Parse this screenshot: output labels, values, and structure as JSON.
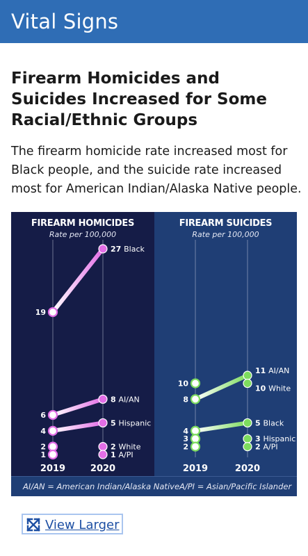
{
  "header": {
    "title": "Vital Signs"
  },
  "article": {
    "headline": "Firearm Homicides and Suicides Increased for Some Racial/Ethnic Groups",
    "lede": "The firearm homicide rate increased most for Black people, and the suicide rate increased most for American Indian/Alaska Native people."
  },
  "colors": {
    "homicide": "#e26ee6",
    "suicide": "#7ddc5e",
    "left_bg": "#151c47",
    "right_bg": "#1f3e75",
    "header": "#2f6db5"
  },
  "chart_data": [
    {
      "type": "line",
      "title": "FIREARM HOMICIDES",
      "subtitle": "Rate per 100,000",
      "x": [
        "2019",
        "2020"
      ],
      "series": [
        {
          "name": "Black",
          "values": [
            19,
            27
          ]
        },
        {
          "name": "AI/AN",
          "values": [
            6,
            8
          ]
        },
        {
          "name": "Hispanic",
          "values": [
            4,
            5
          ]
        },
        {
          "name": "White",
          "values": [
            2,
            2
          ]
        },
        {
          "name": "A/PI",
          "values": [
            1,
            1
          ]
        }
      ]
    },
    {
      "type": "line",
      "title": "FIREARM SUICIDES",
      "subtitle": "Rate per 100,000",
      "x": [
        "2019",
        "2020"
      ],
      "series": [
        {
          "name": "AI/AN",
          "values": [
            8,
            11
          ]
        },
        {
          "name": "White",
          "values": [
            10,
            10
          ]
        },
        {
          "name": "Black",
          "values": [
            4,
            5
          ]
        },
        {
          "name": "Hispanic",
          "values": [
            3,
            3
          ]
        },
        {
          "name": "A/PI",
          "values": [
            2,
            2
          ]
        }
      ]
    }
  ],
  "footnotes": {
    "left": "AI/AN = American Indian/Alaska Native",
    "right": "A/PI = Asian/Pacific Islander"
  },
  "link": {
    "label": "View Larger",
    "icon": "expand-icon"
  }
}
